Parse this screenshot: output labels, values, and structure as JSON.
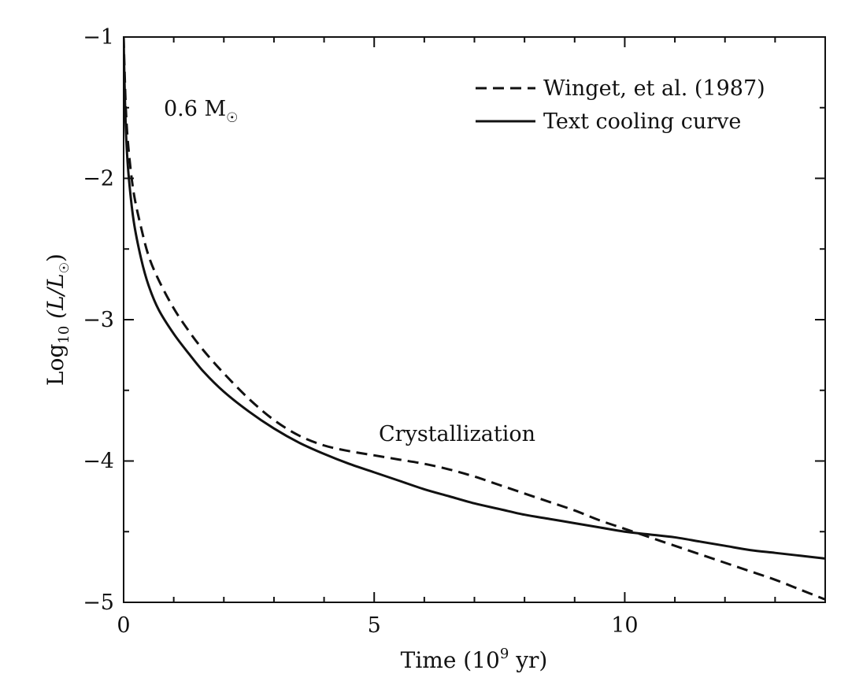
{
  "chart_data": {
    "type": "line",
    "title": "",
    "xlabel": {
      "base": "Time (10",
      "sup": "9",
      "tail": " yr)"
    },
    "ylabel": {
      "base": "Log",
      "sub": "10",
      "tail": " (L/L",
      "sym": "☉",
      "end": ")"
    },
    "xlim": [
      0,
      14
    ],
    "ylim": [
      -5,
      -1
    ],
    "xticks": [
      0,
      5,
      10
    ],
    "xtick_labels": [
      "0",
      "5",
      "10"
    ],
    "yticks": [
      -1,
      -2,
      -3,
      -4,
      -5
    ],
    "ytick_labels": [
      "−1",
      "−2",
      "−3",
      "−4",
      "−5"
    ],
    "grid": false,
    "legend_position": "top-right",
    "annotations": {
      "mass_value": "0.6 M",
      "mass_symbol": "☉",
      "crystallization": "Crystallization"
    },
    "series": [
      {
        "name": "Winget, et al. (1987)",
        "style": "dashed",
        "color": "#111111",
        "x": [
          0,
          0.02,
          0.05,
          0.1,
          0.2,
          0.35,
          0.5,
          0.7,
          1.0,
          1.3,
          1.6,
          2.0,
          2.5,
          3.0,
          3.5,
          4.0,
          4.5,
          5.0,
          5.5,
          6.0,
          6.5,
          7.0,
          7.5,
          8.0,
          8.5,
          9.0,
          9.5,
          10.0,
          10.5,
          11.0,
          11.5,
          12.0,
          12.5,
          13.0,
          13.5,
          14.0
        ],
        "y": [
          -1.0,
          -1.25,
          -1.55,
          -1.8,
          -2.1,
          -2.35,
          -2.55,
          -2.72,
          -2.92,
          -3.08,
          -3.22,
          -3.38,
          -3.56,
          -3.71,
          -3.82,
          -3.89,
          -3.93,
          -3.96,
          -3.99,
          -4.02,
          -4.06,
          -4.11,
          -4.17,
          -4.23,
          -4.29,
          -4.35,
          -4.42,
          -4.48,
          -4.54,
          -4.6,
          -4.66,
          -4.72,
          -4.78,
          -4.84,
          -4.91,
          -4.98
        ]
      },
      {
        "name": "Text cooling curve",
        "style": "solid",
        "color": "#111111",
        "x": [
          0,
          0.02,
          0.05,
          0.1,
          0.2,
          0.35,
          0.5,
          0.7,
          1.0,
          1.3,
          1.6,
          2.0,
          2.5,
          3.0,
          3.5,
          4.0,
          4.5,
          5.0,
          5.5,
          6.0,
          6.5,
          7.0,
          7.5,
          8.0,
          8.5,
          9.0,
          9.5,
          10.0,
          10.5,
          11.0,
          11.5,
          12.0,
          12.5,
          13.0,
          13.5,
          14.0
        ],
        "y": [
          -1.0,
          -1.35,
          -1.7,
          -1.98,
          -2.3,
          -2.57,
          -2.76,
          -2.93,
          -3.1,
          -3.24,
          -3.37,
          -3.51,
          -3.65,
          -3.77,
          -3.87,
          -3.95,
          -4.02,
          -4.08,
          -4.14,
          -4.2,
          -4.25,
          -4.3,
          -4.34,
          -4.38,
          -4.41,
          -4.44,
          -4.47,
          -4.5,
          -4.52,
          -4.54,
          -4.57,
          -4.6,
          -4.63,
          -4.65,
          -4.67,
          -4.69
        ]
      }
    ]
  }
}
